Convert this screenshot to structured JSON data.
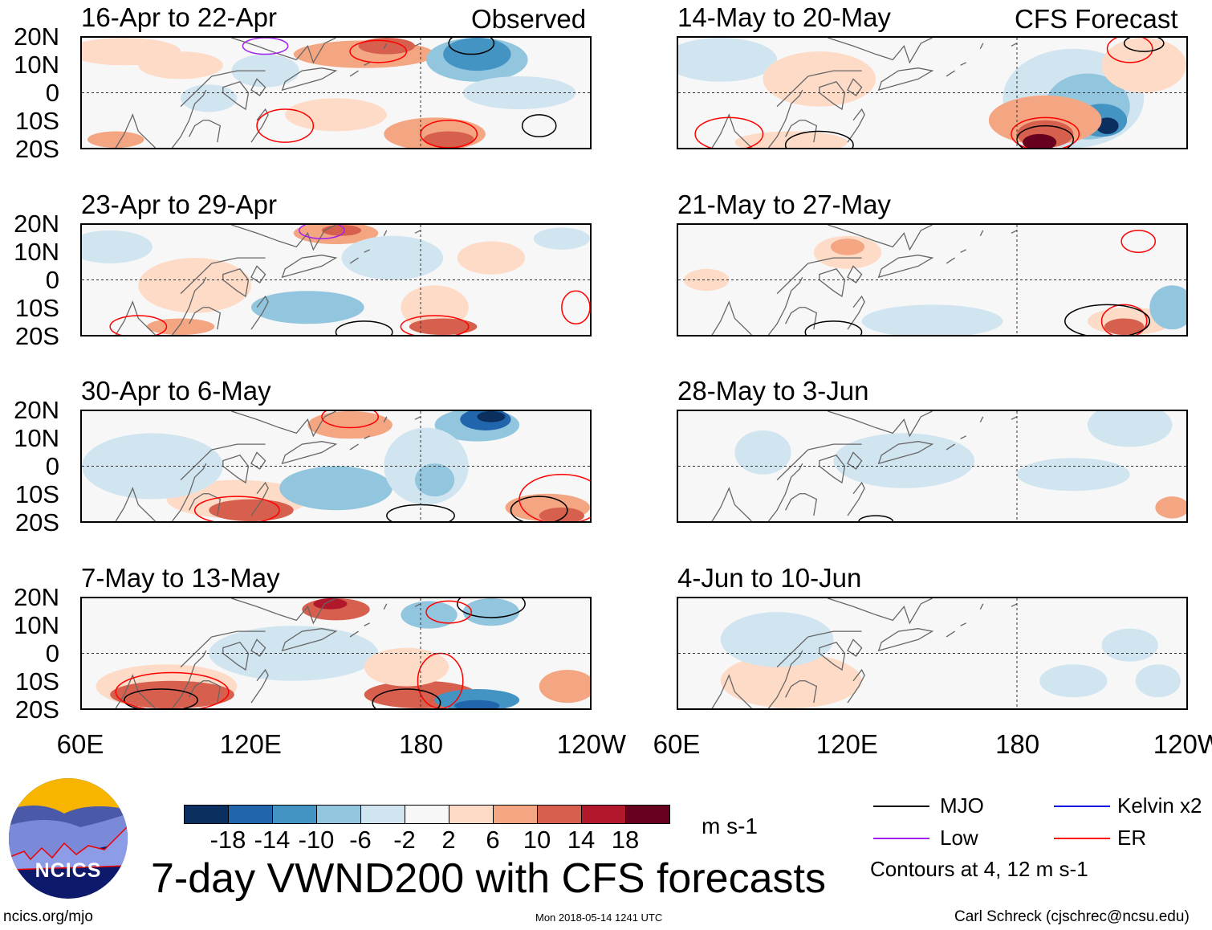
{
  "chart_data": {
    "type": "heatmap",
    "title": "7-day VWND200 with CFS forecasts",
    "units": "m s-1",
    "lat_ticks": [
      "20N",
      "10N",
      "0",
      "10S",
      "20S"
    ],
    "lon_ticks": [
      "60E",
      "120E",
      "180",
      "120W"
    ],
    "xlim": [
      60,
      240
    ],
    "ylim": [
      -20,
      20
    ],
    "observed_label": "Observed",
    "forecast_label": "CFS Forecast",
    "panels_observed": [
      "16-Apr to 22-Apr",
      "23-Apr to 29-Apr",
      "30-Apr to 6-May",
      "7-May to 13-May"
    ],
    "panels_forecast": [
      "14-May to 20-May",
      "21-May to 27-May",
      "28-May to 3-Jun",
      "4-Jun to 10-Jun"
    ],
    "colorbar": {
      "ticks": [
        "-18",
        "-14",
        "-10",
        "-6",
        "-2",
        "2",
        "6",
        "10",
        "14",
        "18"
      ],
      "colors": [
        "#0b2f5e",
        "#2166ac",
        "#4393c3",
        "#92c5de",
        "#d1e5f0",
        "#f7f7f7",
        "#fddbc7",
        "#f4a582",
        "#d6604d",
        "#b2182b",
        "#67001f"
      ]
    },
    "legend": {
      "items": [
        {
          "label": "MJO",
          "color": "#000000"
        },
        {
          "label": "Kelvin x2",
          "color": "#1010e0"
        },
        {
          "label": "Low",
          "color": "#a020f0"
        },
        {
          "label": "ER",
          "color": "#ff0000"
        }
      ],
      "note": "Contours at 4, 12 m s-1"
    }
  },
  "footer": {
    "url": "ncics.org/mjo",
    "timestamp": "Mon 2018-05-14 1241 UTC",
    "credit": "Carl Schreck (cjschrec@ncsu.edu)",
    "logo_text": "NCICS"
  }
}
